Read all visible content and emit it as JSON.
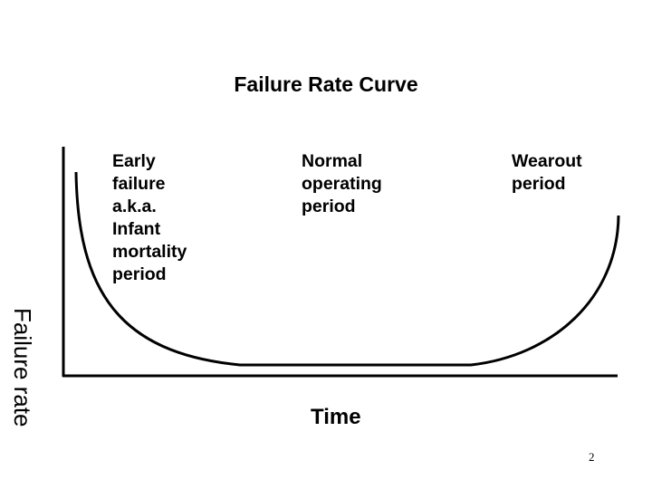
{
  "slide": {
    "title": "Failure Rate Curve",
    "page_number": "2"
  },
  "diagram": {
    "y_axis_label": "Failure rate",
    "x_axis_label": "Time",
    "regions": [
      {
        "id": "early",
        "label": "Early\nfailure\na.k.a.\nInfant\nmortality\nperiod"
      },
      {
        "id": "normal",
        "label": "Normal\noperating\nperiod"
      },
      {
        "id": "wearout",
        "label": "Wearout\nperiod"
      }
    ],
    "curve_shape": "bathtub",
    "colors": {
      "stroke": "#000000",
      "background": "#ffffff"
    }
  }
}
